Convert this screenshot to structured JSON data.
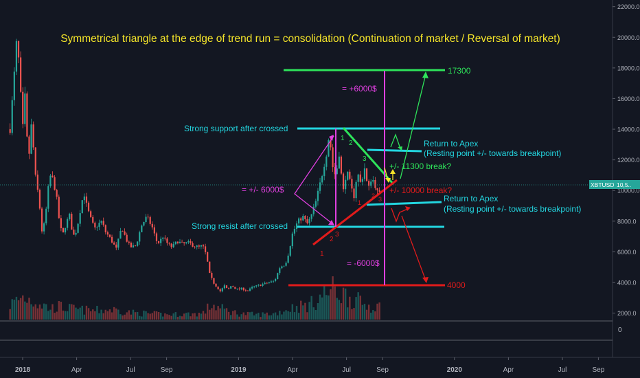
{
  "chart_data": {
    "type": "candlestick",
    "title": "Symmetrical triangle at the edge of trend run = consolidation (Continuation of market / Reversal of market)",
    "symbol_tag": "XBTUSD",
    "price_tag": "10,5..",
    "y_ticks": [
      "22000.0",
      "20000.0",
      "18000.0",
      "16000.0",
      "14000.0",
      "12000.0",
      "10000.0",
      "8000.0",
      "6000.0",
      "4000.0",
      "2000.0"
    ],
    "y_range": [
      1800,
      22300
    ],
    "sub_pane_tick": "0",
    "x_ticks": [
      {
        "label": "2018",
        "month": 0,
        "bold": true
      },
      {
        "label": "Apr",
        "month": 3
      },
      {
        "label": "Jul",
        "month": 6
      },
      {
        "label": "Sep",
        "month": 8
      },
      {
        "label": "2019",
        "month": 12,
        "bold": true
      },
      {
        "label": "Apr",
        "month": 15
      },
      {
        "label": "Jul",
        "month": 18
      },
      {
        "label": "Sep",
        "month": 20
      },
      {
        "label": "2020",
        "month": 24,
        "bold": true
      },
      {
        "label": "Apr",
        "month": 27
      },
      {
        "label": "Jul",
        "month": 30
      },
      {
        "label": "Sep",
        "month": 32
      }
    ],
    "price_path": [
      [
        -0.7,
        14000
      ],
      [
        -0.5,
        17000
      ],
      [
        -0.35,
        19500
      ],
      [
        -0.3,
        20000
      ],
      [
        -0.15,
        17000
      ],
      [
        0.0,
        14000
      ],
      [
        0.15,
        16500
      ],
      [
        0.3,
        11500
      ],
      [
        0.5,
        14500
      ],
      [
        0.7,
        11000
      ],
      [
        0.9,
        9500
      ],
      [
        1.1,
        7000
      ],
      [
        1.3,
        8700
      ],
      [
        1.5,
        11000
      ],
      [
        1.7,
        10700
      ],
      [
        1.9,
        9400
      ],
      [
        2.0,
        8300
      ],
      [
        2.2,
        7000
      ],
      [
        2.4,
        7800
      ],
      [
        2.6,
        8400
      ],
      [
        2.8,
        7000
      ],
      [
        3.0,
        7400
      ],
      [
        3.2,
        8700
      ],
      [
        3.4,
        9900
      ],
      [
        3.6,
        8800
      ],
      [
        3.8,
        8100
      ],
      [
        4.0,
        7500
      ],
      [
        4.2,
        7800
      ],
      [
        4.4,
        8000
      ],
      [
        4.6,
        7300
      ],
      [
        4.8,
        7000
      ],
      [
        5.0,
        6600
      ],
      [
        5.2,
        6200
      ],
      [
        5.5,
        7600
      ],
      [
        5.8,
        6700
      ],
      [
        6.0,
        6300
      ],
      [
        6.3,
        6400
      ],
      [
        6.6,
        7700
      ],
      [
        6.9,
        8300
      ],
      [
        7.2,
        7600
      ],
      [
        7.5,
        6500
      ],
      [
        7.8,
        7000
      ],
      [
        8.0,
        6600
      ],
      [
        8.3,
        6300
      ],
      [
        8.6,
        6700
      ],
      [
        8.9,
        6500
      ],
      [
        9.2,
        6600
      ],
      [
        9.5,
        6400
      ],
      [
        9.8,
        6300
      ],
      [
        10.0,
        6400
      ],
      [
        10.2,
        5800
      ],
      [
        10.4,
        4500
      ],
      [
        10.6,
        4000
      ],
      [
        10.8,
        3700
      ],
      [
        11.0,
        3400
      ],
      [
        11.2,
        3800
      ],
      [
        11.4,
        3500
      ],
      [
        11.6,
        3800
      ],
      [
        11.9,
        3550
      ],
      [
        12.2,
        3600
      ],
      [
        12.5,
        3450
      ],
      [
        12.8,
        3700
      ],
      [
        13.1,
        3800
      ],
      [
        13.4,
        3900
      ],
      [
        13.7,
        4000
      ],
      [
        14.0,
        4100
      ],
      [
        14.3,
        5000
      ],
      [
        14.6,
        5200
      ],
      [
        14.8,
        6000
      ],
      [
        15.0,
        7200
      ],
      [
        15.3,
        8000
      ],
      [
        15.6,
        8300
      ],
      [
        15.8,
        7800
      ],
      [
        16.0,
        8200
      ],
      [
        16.3,
        9300
      ],
      [
        16.6,
        10800
      ],
      [
        16.9,
        12500
      ],
      [
        17.05,
        13800
      ],
      [
        17.2,
        11700
      ],
      [
        17.4,
        10900
      ],
      [
        17.6,
        12500
      ],
      [
        17.8,
        9800
      ],
      [
        18.0,
        11300
      ],
      [
        18.2,
        10500
      ],
      [
        18.4,
        9500
      ],
      [
        18.6,
        11200
      ],
      [
        18.8,
        10400
      ],
      [
        19.0,
        11500
      ],
      [
        19.2,
        10000
      ],
      [
        19.4,
        10900
      ],
      [
        19.6,
        10300
      ],
      [
        19.8,
        9600
      ],
      [
        19.9,
        10200
      ]
    ],
    "volume_profile": [
      [
        -0.7,
        30
      ],
      [
        0.0,
        45
      ],
      [
        0.5,
        40
      ],
      [
        1.0,
        32
      ],
      [
        1.5,
        22
      ],
      [
        2.0,
        26
      ],
      [
        3.0,
        20
      ],
      [
        4.0,
        18
      ],
      [
        5.0,
        20
      ],
      [
        6.0,
        14
      ],
      [
        7.0,
        12
      ],
      [
        8.0,
        10
      ],
      [
        9.0,
        11
      ],
      [
        10.0,
        12
      ],
      [
        10.5,
        30
      ],
      [
        11.0,
        22
      ],
      [
        12.0,
        12
      ],
      [
        13.0,
        10
      ],
      [
        14.0,
        12
      ],
      [
        15.0,
        24
      ],
      [
        16.0,
        30
      ],
      [
        16.8,
        52
      ],
      [
        17.2,
        60
      ],
      [
        18.0,
        48
      ],
      [
        19.0,
        30
      ],
      [
        19.9,
        25
      ]
    ],
    "annotations": {
      "level_17300": {
        "label": "17300",
        "value": 17300,
        "color": "#2ee35a"
      },
      "level_4000": {
        "label": "4000",
        "value": 4000,
        "color": "#e01b1b"
      },
      "strong_support": {
        "label": "Strong support after crossed",
        "value": 13900,
        "color": "#23d6e0"
      },
      "strong_resist": {
        "label": "Strong resist after crossed",
        "value": 7750,
        "color": "#23d6e0"
      },
      "return_apex_upper": {
        "line1": "Return to Apex",
        "line2": "(Resting point +/- towards breakpoint)"
      },
      "return_apex_lower": {
        "line1": "Return to Apex",
        "line2": "(Resting point +/- towards breakpoint)"
      },
      "break_11300": "+/- 11300 break?",
      "break_10000": "+/- 10000 break?",
      "plus_6000": "= +6000$",
      "minus_6000": "= -6000$",
      "pm_6000": "= +/- 6000$",
      "wave_labels_lower": [
        "1",
        "2",
        "3"
      ],
      "wave_labels_upper": [
        "1",
        "2",
        "3"
      ],
      "wave_labels_triangle": [
        "1",
        "2",
        "3"
      ]
    },
    "colors": {
      "background": "#131722",
      "up": "#26a69a",
      "down": "#ef5350",
      "title": "#f5e52a",
      "cyan": "#23d6e0",
      "magenta": "#e040e0",
      "green": "#2ee35a",
      "red": "#e01b1b",
      "yellow": "#f5e52a",
      "axis_text": "#b2b5be"
    }
  }
}
